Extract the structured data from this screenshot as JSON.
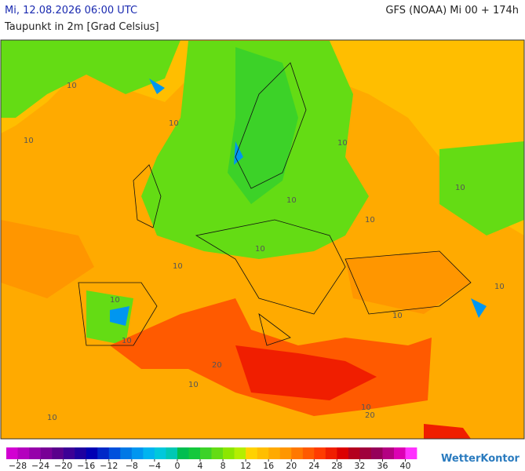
{
  "header": {
    "datetime": "Mi, 12.08.2026 06:00 UTC",
    "model": "GFS (NOAA) Mi 00 + 174h",
    "subtitle": "Taupunkt in 2m [Grad Celsius]"
  },
  "map": {
    "contour_labels": [
      "10",
      "10",
      "10",
      "10",
      "10",
      "10",
      "10",
      "10",
      "10",
      "10",
      "10",
      "10",
      "10",
      "10",
      "10",
      "10",
      "20",
      "20"
    ]
  },
  "legend": {
    "range": [
      -30,
      42
    ],
    "colors": [
      "#d200d2",
      "#b400be",
      "#9600aa",
      "#780096",
      "#5a008c",
      "#3c0096",
      "#1e00a0",
      "#0000b4",
      "#0028c8",
      "#0050dc",
      "#0078e6",
      "#0096f0",
      "#00b4f0",
      "#00c8dc",
      "#00c8b4",
      "#00be50",
      "#14c83c",
      "#3cd228",
      "#64dc14",
      "#8ce600",
      "#b4ee00",
      "#ffd200",
      "#ffbe00",
      "#ffaa00",
      "#ff9600",
      "#ff7800",
      "#ff5a00",
      "#ff3c00",
      "#f01e00",
      "#dc0000",
      "#b4001e",
      "#a0003c",
      "#96005a",
      "#b40082",
      "#dc00b4",
      "#ff32ff"
    ],
    "ticks": [
      {
        "value": -28,
        "label": "−28"
      },
      {
        "value": -24,
        "label": "−24"
      },
      {
        "value": -20,
        "label": "−20"
      },
      {
        "value": -16,
        "label": "−16"
      },
      {
        "value": -12,
        "label": "−12"
      },
      {
        "value": -8,
        "label": "−8"
      },
      {
        "value": -4,
        "label": "−4"
      },
      0,
      4,
      8,
      12,
      16,
      20,
      24,
      28,
      32,
      36,
      40
    ]
  },
  "brand": "WetterKontor"
}
